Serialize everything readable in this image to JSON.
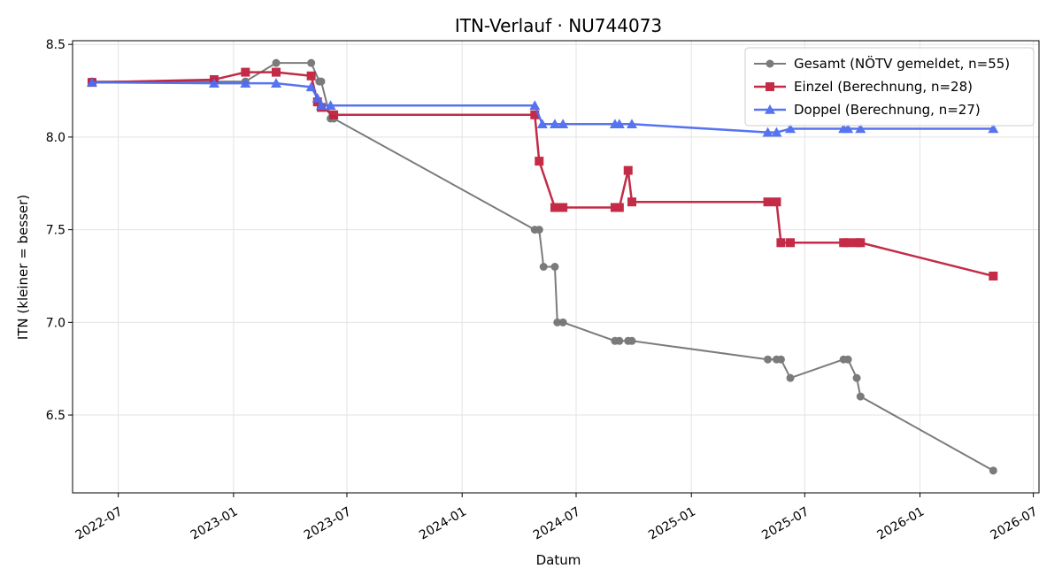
{
  "chart_data": {
    "type": "line",
    "title": "ITN-Verlauf · NU744073",
    "xlabel": "Datum",
    "ylabel": "ITN  (kleiner = besser)",
    "x_axis": "date",
    "xlim": [
      "2022-04-19",
      "2026-07-10"
    ],
    "ylim": [
      6.08,
      8.52
    ],
    "x_ticks": [
      "2022-07-01",
      "2023-01-01",
      "2023-07-01",
      "2024-01-01",
      "2024-07-01",
      "2025-01-01",
      "2025-07-01",
      "2026-01-01",
      "2026-07-01"
    ],
    "x_tick_labels": [
      "2022-07",
      "2023-01",
      "2023-07",
      "2024-01",
      "2024-07",
      "2025-01",
      "2025-07",
      "2026-01",
      "2026-07"
    ],
    "y_ticks": [
      6.5,
      7.0,
      7.5,
      8.0,
      8.5
    ],
    "y_tick_labels": [
      "6.5",
      "7.0",
      "7.5",
      "8.0",
      "8.5"
    ],
    "grid": true,
    "legend_position": "top-right",
    "series": [
      {
        "name": "Gesamt (NÖTV gemeldet, n=55)",
        "color": "#444444",
        "marker": "circle",
        "points": [
          [
            "2022-05-20",
            8.3
          ],
          [
            "2022-12-01",
            8.3
          ],
          [
            "2023-01-20",
            8.3
          ],
          [
            "2023-03-10",
            8.4
          ],
          [
            "2023-05-05",
            8.4
          ],
          [
            "2023-05-18",
            8.3
          ],
          [
            "2023-05-21",
            8.3
          ],
          [
            "2023-06-05",
            8.1
          ],
          [
            "2023-06-10",
            8.1
          ],
          [
            "2024-04-26",
            7.5
          ],
          [
            "2024-05-03",
            7.5
          ],
          [
            "2024-05-10",
            7.3
          ],
          [
            "2024-05-28",
            7.3
          ],
          [
            "2024-06-01",
            7.0
          ],
          [
            "2024-06-10",
            7.0
          ],
          [
            "2024-09-01",
            6.9
          ],
          [
            "2024-09-08",
            6.9
          ],
          [
            "2024-09-22",
            6.9
          ],
          [
            "2024-09-28",
            6.9
          ],
          [
            "2025-05-03",
            6.8
          ],
          [
            "2025-05-17",
            6.8
          ],
          [
            "2025-05-24",
            6.8
          ],
          [
            "2025-06-08",
            6.7
          ],
          [
            "2025-09-01",
            6.8
          ],
          [
            "2025-09-08",
            6.8
          ],
          [
            "2025-09-22",
            6.7
          ],
          [
            "2025-09-28",
            6.6
          ],
          [
            "2026-04-28",
            6.2
          ]
        ]
      },
      {
        "name": "Einzel (Berechnung, n=28)",
        "color": "#c0203d",
        "marker": "square",
        "points": [
          [
            "2022-05-20",
            8.295
          ],
          [
            "2022-12-01",
            8.31
          ],
          [
            "2023-01-20",
            8.35
          ],
          [
            "2023-03-10",
            8.35
          ],
          [
            "2023-05-05",
            8.33
          ],
          [
            "2023-05-15",
            8.19
          ],
          [
            "2023-05-21",
            8.16
          ],
          [
            "2023-06-10",
            8.12
          ],
          [
            "2024-04-26",
            8.12
          ],
          [
            "2024-05-03",
            7.87
          ],
          [
            "2024-05-28",
            7.62
          ],
          [
            "2024-06-10",
            7.62
          ],
          [
            "2024-09-01",
            7.62
          ],
          [
            "2024-09-08",
            7.62
          ],
          [
            "2024-09-22",
            7.82
          ],
          [
            "2024-09-28",
            7.65
          ],
          [
            "2025-05-03",
            7.65
          ],
          [
            "2025-05-17",
            7.65
          ],
          [
            "2025-05-24",
            7.43
          ],
          [
            "2025-06-08",
            7.43
          ],
          [
            "2025-09-01",
            7.43
          ],
          [
            "2025-09-08",
            7.43
          ],
          [
            "2025-09-22",
            7.43
          ],
          [
            "2025-09-28",
            7.43
          ],
          [
            "2026-04-28",
            7.25
          ]
        ]
      },
      {
        "name": "Doppel (Berechnung, n=27)",
        "color": "#4f6df0",
        "marker": "triangle",
        "points": [
          [
            "2022-05-20",
            8.295
          ],
          [
            "2022-12-01",
            8.29
          ],
          [
            "2023-01-20",
            8.29
          ],
          [
            "2023-03-10",
            8.29
          ],
          [
            "2023-05-05",
            8.27
          ],
          [
            "2023-05-15",
            8.21
          ],
          [
            "2023-05-21",
            8.17
          ],
          [
            "2023-06-05",
            8.17
          ],
          [
            "2024-04-26",
            8.17
          ],
          [
            "2024-05-08",
            8.07
          ],
          [
            "2024-05-28",
            8.07
          ],
          [
            "2024-06-10",
            8.07
          ],
          [
            "2024-09-01",
            8.07
          ],
          [
            "2024-09-08",
            8.07
          ],
          [
            "2024-09-28",
            8.07
          ],
          [
            "2025-05-03",
            8.025
          ],
          [
            "2025-05-17",
            8.025
          ],
          [
            "2025-06-08",
            8.045
          ],
          [
            "2025-09-01",
            8.045
          ],
          [
            "2025-09-08",
            8.045
          ],
          [
            "2025-09-28",
            8.045
          ],
          [
            "2026-04-28",
            8.045
          ]
        ]
      }
    ]
  }
}
